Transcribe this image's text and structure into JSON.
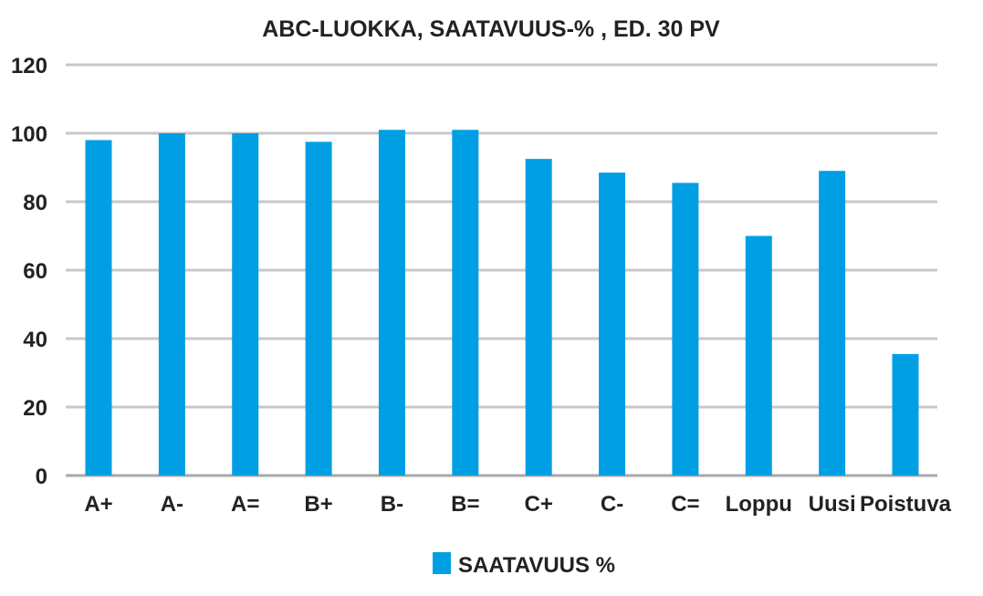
{
  "chart_data": {
    "type": "bar",
    "title": "ABC-LUOKKA, SAATAVUUS-% , ED. 30 PV",
    "categories": [
      "A+",
      "A-",
      "A=",
      "B+",
      "B-",
      "B=",
      "C+",
      "C-",
      "C=",
      "Loppu",
      "Uusi",
      "Poistuva"
    ],
    "series": [
      {
        "name": "SAATAVUUS %",
        "values": [
          98,
          100,
          100,
          97.5,
          101,
          101,
          92.5,
          88.5,
          85.5,
          70,
          89,
          35.5
        ]
      }
    ],
    "ylim": [
      0,
      120
    ],
    "yticks": [
      "0",
      "20",
      "40",
      "60",
      "80",
      "100",
      "120"
    ],
    "grid": true,
    "legend": "bottom",
    "colors": {
      "bar": "#009fe3"
    }
  }
}
